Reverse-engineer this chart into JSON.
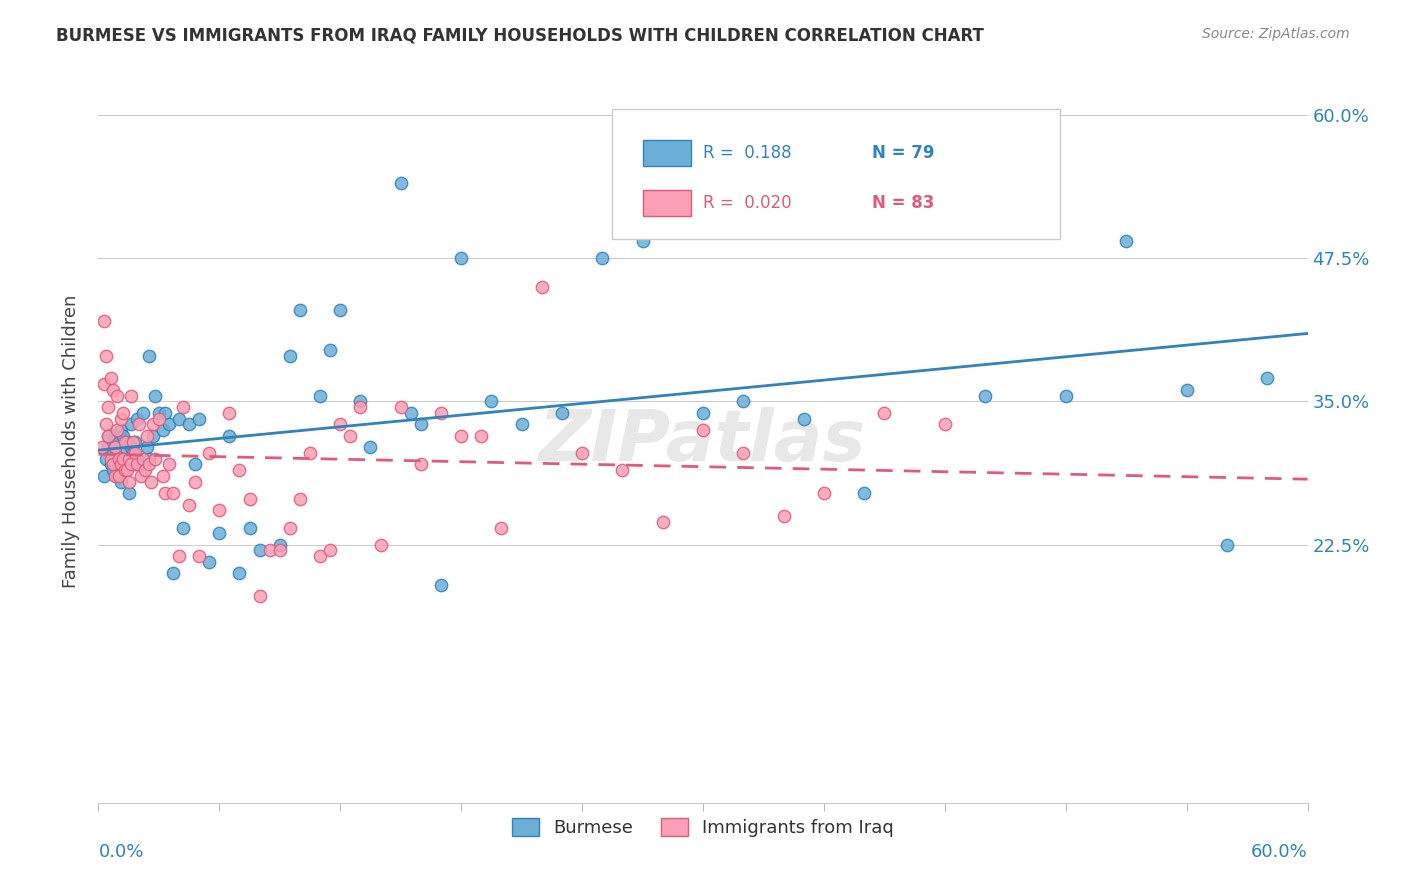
{
  "title": "BURMESE VS IMMIGRANTS FROM IRAQ FAMILY HOUSEHOLDS WITH CHILDREN CORRELATION CHART",
  "source": "Source: ZipAtlas.com",
  "ylabel": "Family Households with Children",
  "xmin": 0.0,
  "xmax": 0.6,
  "ymin": 0.0,
  "ymax": 0.63,
  "watermark": "ZIPatlas",
  "color_blue": "#6baed6",
  "color_pink": "#fa9fb5",
  "color_blue_text": "#3182bd",
  "color_pink_text": "#e05a7a",
  "ytick_vals": [
    0.225,
    0.35,
    0.475,
    0.6
  ],
  "ytick_labels": [
    "22.5%",
    "35.0%",
    "47.5%",
    "60.0%"
  ],
  "burmese_x": [
    0.003,
    0.004,
    0.005,
    0.005,
    0.006,
    0.007,
    0.007,
    0.008,
    0.008,
    0.009,
    0.01,
    0.01,
    0.011,
    0.011,
    0.012,
    0.012,
    0.013,
    0.013,
    0.014,
    0.015,
    0.015,
    0.016,
    0.016,
    0.017,
    0.018,
    0.018,
    0.019,
    0.02,
    0.022,
    0.024,
    0.025,
    0.025,
    0.027,
    0.028,
    0.03,
    0.032,
    0.033,
    0.035,
    0.037,
    0.04,
    0.042,
    0.045,
    0.048,
    0.05,
    0.055,
    0.06,
    0.065,
    0.07,
    0.075,
    0.08,
    0.09,
    0.095,
    0.1,
    0.11,
    0.115,
    0.12,
    0.13,
    0.135,
    0.15,
    0.155,
    0.16,
    0.17,
    0.18,
    0.195,
    0.21,
    0.23,
    0.25,
    0.27,
    0.3,
    0.32,
    0.35,
    0.38,
    0.4,
    0.44,
    0.48,
    0.51,
    0.54,
    0.56,
    0.58
  ],
  "burmese_y": [
    0.285,
    0.3,
    0.31,
    0.32,
    0.295,
    0.29,
    0.305,
    0.31,
    0.32,
    0.285,
    0.295,
    0.315,
    0.325,
    0.28,
    0.295,
    0.32,
    0.3,
    0.31,
    0.315,
    0.295,
    0.27,
    0.31,
    0.33,
    0.305,
    0.295,
    0.315,
    0.335,
    0.295,
    0.34,
    0.31,
    0.3,
    0.39,
    0.32,
    0.355,
    0.34,
    0.325,
    0.34,
    0.33,
    0.2,
    0.335,
    0.24,
    0.33,
    0.295,
    0.335,
    0.21,
    0.235,
    0.32,
    0.2,
    0.24,
    0.22,
    0.225,
    0.39,
    0.43,
    0.355,
    0.395,
    0.43,
    0.35,
    0.31,
    0.54,
    0.34,
    0.33,
    0.19,
    0.475,
    0.35,
    0.33,
    0.34,
    0.475,
    0.49,
    0.34,
    0.35,
    0.335,
    0.27,
    0.59,
    0.355,
    0.355,
    0.49,
    0.36,
    0.225,
    0.37
  ],
  "iraq_x": [
    0.002,
    0.003,
    0.003,
    0.004,
    0.004,
    0.005,
    0.005,
    0.006,
    0.006,
    0.007,
    0.007,
    0.008,
    0.008,
    0.009,
    0.009,
    0.01,
    0.01,
    0.011,
    0.011,
    0.012,
    0.012,
    0.013,
    0.013,
    0.014,
    0.015,
    0.015,
    0.016,
    0.016,
    0.017,
    0.018,
    0.019,
    0.02,
    0.021,
    0.022,
    0.023,
    0.024,
    0.025,
    0.026,
    0.027,
    0.028,
    0.03,
    0.032,
    0.033,
    0.035,
    0.037,
    0.04,
    0.042,
    0.045,
    0.048,
    0.05,
    0.055,
    0.06,
    0.065,
    0.07,
    0.075,
    0.08,
    0.085,
    0.09,
    0.095,
    0.1,
    0.105,
    0.11,
    0.115,
    0.12,
    0.125,
    0.13,
    0.14,
    0.15,
    0.16,
    0.17,
    0.18,
    0.19,
    0.2,
    0.22,
    0.24,
    0.26,
    0.28,
    0.3,
    0.32,
    0.34,
    0.36,
    0.39,
    0.42
  ],
  "iraq_y": [
    0.31,
    0.42,
    0.365,
    0.39,
    0.33,
    0.345,
    0.32,
    0.37,
    0.3,
    0.36,
    0.295,
    0.285,
    0.31,
    0.325,
    0.355,
    0.285,
    0.3,
    0.295,
    0.335,
    0.3,
    0.34,
    0.29,
    0.315,
    0.29,
    0.28,
    0.3,
    0.295,
    0.355,
    0.315,
    0.305,
    0.295,
    0.33,
    0.285,
    0.3,
    0.29,
    0.32,
    0.295,
    0.28,
    0.33,
    0.3,
    0.335,
    0.285,
    0.27,
    0.295,
    0.27,
    0.215,
    0.345,
    0.26,
    0.28,
    0.215,
    0.305,
    0.255,
    0.34,
    0.29,
    0.265,
    0.18,
    0.22,
    0.22,
    0.24,
    0.265,
    0.305,
    0.215,
    0.22,
    0.33,
    0.32,
    0.345,
    0.225,
    0.345,
    0.295,
    0.34,
    0.32,
    0.32,
    0.24,
    0.45,
    0.305,
    0.29,
    0.245,
    0.325,
    0.305,
    0.25,
    0.27,
    0.34,
    0.33
  ]
}
